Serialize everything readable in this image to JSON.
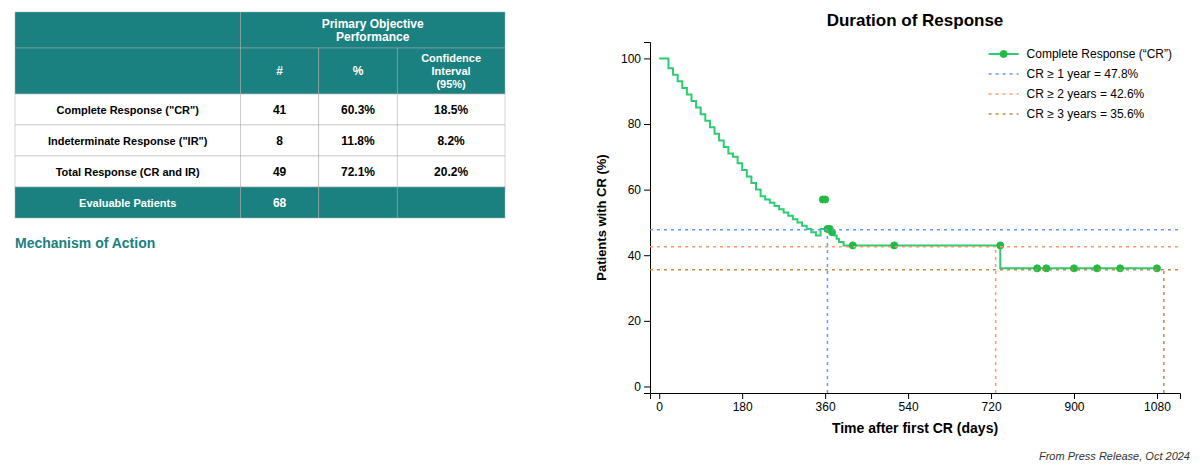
{
  "chart_data": [
    {
      "type": "line",
      "title": "Duration of Response",
      "xlabel": "Time after first CR (days)",
      "ylabel": "Patients with CR (%)",
      "xlim": [
        -20,
        1130
      ],
      "ylim": [
        -2,
        105
      ],
      "xticks": [
        0,
        180,
        360,
        540,
        720,
        900,
        1080
      ],
      "yticks": [
        0,
        20,
        40,
        60,
        80,
        100
      ],
      "grid": false,
      "legend": "upper right",
      "annotations": [
        "From Press Release, Oct 2024"
      ],
      "series": [
        {
          "name": "Complete Response (“CR”)",
          "color": "#2ecc71",
          "line_style": "step",
          "marker": "circle",
          "x": [
            0,
            10,
            20,
            30,
            40,
            50,
            60,
            70,
            80,
            90,
            100,
            110,
            120,
            130,
            140,
            150,
            160,
            170,
            180,
            190,
            200,
            210,
            220,
            230,
            240,
            250,
            260,
            270,
            280,
            290,
            300,
            310,
            320,
            330,
            340,
            350,
            355,
            360,
            365,
            370,
            375,
            380,
            385,
            390,
            400,
            420,
            440,
            460,
            480,
            500,
            510,
            520,
            530,
            540,
            560,
            580,
            600,
            650,
            700,
            720,
            740,
            760,
            780,
            800,
            820,
            840,
            900,
            950,
            1000,
            1050,
            1080
          ],
          "values": [
            100,
            100,
            97,
            95,
            93,
            91,
            89,
            87,
            85,
            83,
            81,
            79,
            77,
            75,
            73,
            71,
            70,
            68,
            66,
            64,
            62,
            60,
            58,
            57,
            56,
            55,
            54,
            53,
            52,
            51,
            50,
            49,
            48,
            47,
            46,
            48,
            48,
            48,
            48,
            47,
            47,
            46,
            45,
            44,
            43,
            43,
            43,
            43,
            43,
            43,
            43,
            43,
            43,
            43,
            43,
            43,
            43,
            43,
            43,
            43,
            36,
            36,
            36,
            36,
            36,
            36,
            36,
            36,
            36,
            36,
            36
          ]
        },
        {
          "type": "scatter",
          "color": "#22bb44",
          "marker": "circle",
          "x": [
            355,
            360,
            365,
            370,
            375,
            420,
            510,
            740,
            820,
            840,
            900,
            950,
            1000,
            1080
          ],
          "values": [
            57,
            57,
            48,
            48,
            47,
            43,
            43,
            43,
            36,
            36,
            36,
            36,
            36,
            36
          ]
        },
        {
          "type": "reference",
          "name": "CR ≥ 1 year = 47.8%",
          "color": "#6699ff",
          "line_style": "dashed",
          "x": [
            365
          ],
          "values": [
            47.8
          ]
        },
        {
          "type": "reference",
          "name": "CR ≥ 2 years = 42.6%",
          "color": "#ff9966",
          "line_style": "dashed",
          "x": [
            730
          ],
          "values": [
            42.6
          ]
        },
        {
          "type": "reference",
          "name": "CR ≥ 3 years = 35.6%",
          "color": "#cc8844",
          "line_style": "dashed",
          "x": [
            1095
          ],
          "values": [
            35.6
          ]
        }
      ]
    },
    {
      "type": "table",
      "title": "Primary Objective\nPerformance",
      "color": "#1a8080",
      "annotations": [
        "Mechanism of Action"
      ],
      "categories": [
        "Complete Response (\"CR\")",
        "Indeterminate Response (\"IR\")",
        "Total Response (CR and IR)",
        "Evaluable Patients"
      ],
      "series": [
        {
          "name": "#",
          "values": [
            41,
            8,
            49,
            68
          ]
        },
        {
          "name": "%",
          "values": [
            60.3,
            11.8,
            72.1,
            null
          ],
          "value_labels": [
            "60.3%",
            "11.8%",
            "72.1%",
            null
          ]
        },
        {
          "name": "Confidence\nInterval\n(95%)",
          "values": [
            18.5,
            8.2,
            20.2,
            null
          ],
          "value_labels": [
            "18.5%",
            "8.2%",
            "20.2%",
            null
          ]
        }
      ]
    }
  ]
}
